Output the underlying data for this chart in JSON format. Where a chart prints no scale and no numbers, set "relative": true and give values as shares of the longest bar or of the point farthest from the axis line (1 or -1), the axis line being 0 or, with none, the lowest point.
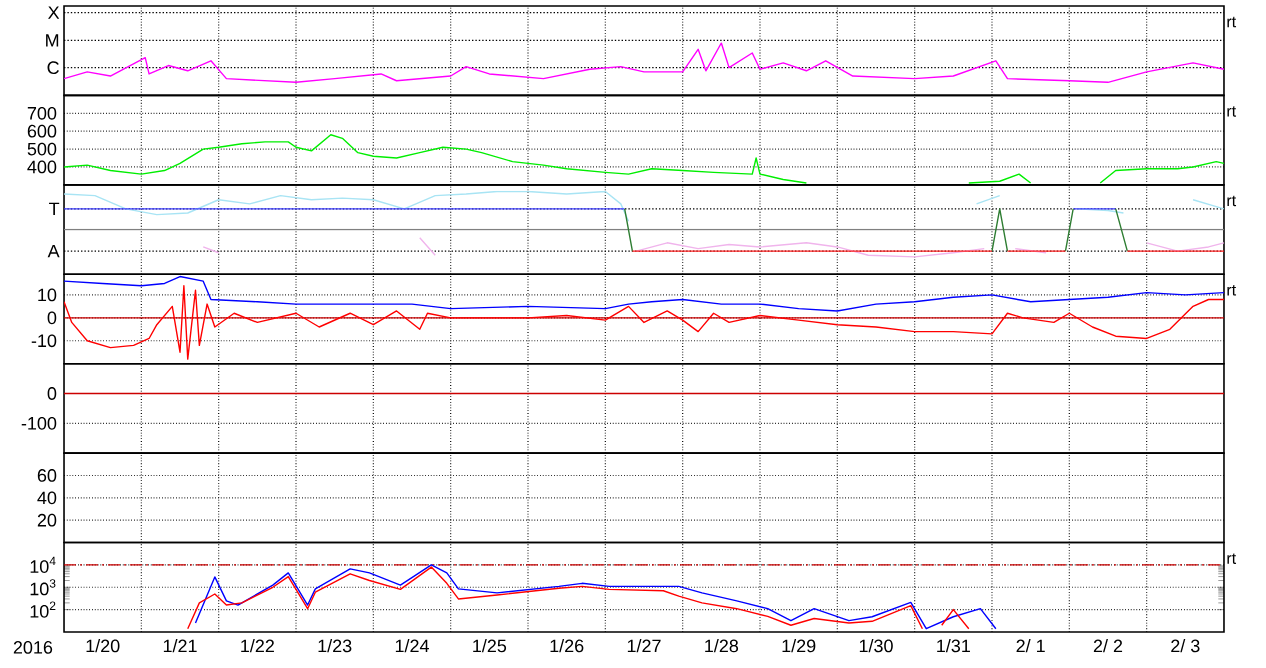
{
  "chart_data": [
    {
      "type": "line",
      "relative": true,
      "grid": "x",
      "tick_labels": "y",
      "xlim": [
        "2016-01-20T00:00",
        "2016-02-04T00:00"
      ],
      "xticks": [
        {
          "value": "2016-01-21",
          "label": null
        },
        {
          "value": "2016-01-22",
          "label": null
        },
        {
          "value": "2016-01-23",
          "label": null
        },
        {
          "value": "2016-01-24",
          "label": null
        },
        {
          "value": "2016-01-25",
          "label": null
        },
        {
          "value": "2016-01-26",
          "label": null
        },
        {
          "value": "2016-01-27",
          "label": null
        },
        {
          "value": "2016-01-28",
          "label": null
        },
        {
          "value": "2016-01-29",
          "label": null
        },
        {
          "value": "2016-01-30",
          "label": null
        },
        {
          "value": "2016-01-31",
          "label": null
        },
        {
          "value": "2016-02-01",
          "label": null
        },
        {
          "value": "2016-02-02",
          "label": null
        },
        {
          "value": "2016-02-03",
          "label": null
        }
      ],
      "annotations": [
        "rt"
      ],
      "ref_lines": [
        {
          "axis": "y",
          "value": 1.58,
          "label": "X",
          "color": "#000000",
          "line_style": "dotted"
        },
        {
          "axis": "y",
          "value": 1.05,
          "label": "M",
          "color": "#000000",
          "line_style": "dotted"
        },
        {
          "axis": "y",
          "value": 0.53,
          "label": "C",
          "color": "#000000",
          "line_style": "dotted"
        }
      ],
      "series": [
        {
          "color": "#ff00ff",
          "x": [
            "2016-01-20T00:00",
            "2016-01-20T07:12",
            "2016-01-20T14:24",
            "2016-01-21T01:12",
            "2016-01-21T02:24",
            "2016-01-21T08:24",
            "2016-01-21T14:24",
            "2016-01-21T21:36",
            "2016-01-22T02:24",
            "2016-01-23T00:00",
            "2016-01-23T12:00",
            "2016-01-24T02:24",
            "2016-01-24T07:12",
            "2016-01-25T00:00",
            "2016-01-25T04:48",
            "2016-01-25T12:00",
            "2016-01-26T04:48",
            "2016-01-26T19:12",
            "2016-01-27T04:48",
            "2016-01-27T12:00",
            "2016-01-28T00:00",
            "2016-01-28T04:48",
            "2016-01-28T07:12",
            "2016-01-28T12:00",
            "2016-01-28T14:24",
            "2016-01-28T21:36",
            "2016-01-29T00:00",
            "2016-01-29T07:12",
            "2016-01-29T14:24",
            "2016-01-29T20:24",
            "2016-01-30T04:48",
            "2016-01-31T00:00",
            "2016-01-31T12:00",
            "2016-02-01T01:12",
            "2016-02-01T04:48",
            "2016-02-02T00:00",
            "2016-02-02T12:00",
            "2016-02-03T00:00",
            "2016-02-03T14:24",
            "2016-02-04T00:00"
          ],
          "values": [
            0.32,
            0.45,
            0.37,
            0.72,
            0.41,
            0.57,
            0.47,
            0.66,
            0.32,
            0.25,
            0.32,
            0.41,
            0.28,
            0.37,
            0.55,
            0.41,
            0.32,
            0.5,
            0.55,
            0.45,
            0.45,
            0.88,
            0.47,
            1,
            0.53,
            0.81,
            0.5,
            0.62,
            0.47,
            0.66,
            0.37,
            0.32,
            0.37,
            0.66,
            0.32,
            0.28,
            0.25,
            0.45,
            0.62,
            0.5
          ]
        }
      ]
    },
    {
      "type": "line",
      "grid": true,
      "tick_labels": "y",
      "xlim": [
        "2016-01-20T00:00",
        "2016-02-04T00:00"
      ],
      "ylim": [
        300,
        800
      ],
      "xticks": [
        {
          "value": "2016-01-21",
          "label": null
        },
        {
          "value": "2016-01-22",
          "label": null
        },
        {
          "value": "2016-01-23",
          "label": null
        },
        {
          "value": "2016-01-24",
          "label": null
        },
        {
          "value": "2016-01-25",
          "label": null
        },
        {
          "value": "2016-01-26",
          "label": null
        },
        {
          "value": "2016-01-27",
          "label": null
        },
        {
          "value": "2016-01-28",
          "label": null
        },
        {
          "value": "2016-01-29",
          "label": null
        },
        {
          "value": "2016-01-30",
          "label": null
        },
        {
          "value": "2016-01-31",
          "label": null
        },
        {
          "value": "2016-02-01",
          "label": null
        },
        {
          "value": "2016-02-02",
          "label": null
        },
        {
          "value": "2016-02-03",
          "label": null
        }
      ],
      "yticks": [
        400,
        500,
        600,
        700
      ],
      "annotations": [
        "rt"
      ],
      "series": [
        {
          "color": "#00ee00",
          "x": [
            "2016-01-20T00:00",
            "2016-01-20T07:12",
            "2016-01-20T14:24",
            "2016-01-21T00:00",
            "2016-01-21T07:12",
            "2016-01-21T12:00",
            "2016-01-21T19:12",
            "2016-01-22T00:00",
            "2016-01-22T07:12",
            "2016-01-22T14:24",
            "2016-01-22T21:36",
            "2016-01-23T00:00",
            "2016-01-23T04:48",
            "2016-01-23T10:48",
            "2016-01-23T14:24",
            "2016-01-23T19:12",
            "2016-01-24T00:00",
            "2016-01-24T07:12",
            "2016-01-24T14:24",
            "2016-01-24T21:36",
            "2016-01-25T04:48",
            "2016-01-25T09:36",
            "2016-01-25T19:12",
            "2016-01-26T04:48",
            "2016-01-26T12:00",
            "2016-01-27T00:00",
            "2016-01-27T07:12",
            "2016-01-27T14:24",
            "2016-01-28T00:00",
            "2016-01-28T09:36",
            "2016-01-28T21:36",
            "2016-01-28T22:48",
            "2016-01-29T00:00",
            "2016-01-29T07:12",
            "2016-01-29T14:24",
            "2016-01-29T16:48",
            "2016-01-31T16:48",
            "2016-02-01T02:24",
            "2016-02-01T08:24",
            "2016-02-01T12:00",
            "2016-02-01T14:24",
            "2016-02-02T09:36",
            "2016-02-02T14:24",
            "2016-02-03T00:00",
            "2016-02-03T09:36",
            "2016-02-03T14:24",
            "2016-02-03T21:36",
            "2016-02-04T00:00"
          ],
          "values": [
            400,
            410,
            380,
            360,
            380,
            420,
            500,
            510,
            530,
            540,
            540,
            510,
            490,
            580,
            560,
            480,
            460,
            450,
            480,
            510,
            500,
            480,
            430,
            410,
            390,
            370,
            360,
            390,
            380,
            370,
            360,
            450,
            360,
            330,
            310,
            null,
            310,
            320,
            360,
            310,
            null,
            310,
            380,
            390,
            390,
            400,
            430,
            420
          ]
        }
      ]
    },
    {
      "type": "line",
      "relative": true,
      "grid": "x",
      "tick_labels": "y",
      "xlim": [
        "2016-01-20T00:00",
        "2016-02-04T00:00"
      ],
      "xticks": [
        {
          "value": "2016-01-21",
          "label": null
        },
        {
          "value": "2016-01-22",
          "label": null
        },
        {
          "value": "2016-01-23",
          "label": null
        },
        {
          "value": "2016-01-24",
          "label": null
        },
        {
          "value": "2016-01-25",
          "label": null
        },
        {
          "value": "2016-01-26",
          "label": null
        },
        {
          "value": "2016-01-27",
          "label": null
        },
        {
          "value": "2016-01-28",
          "label": null
        },
        {
          "value": "2016-01-29",
          "label": null
        },
        {
          "value": "2016-01-30",
          "label": null
        },
        {
          "value": "2016-01-31",
          "label": null
        },
        {
          "value": "2016-02-01",
          "label": null
        },
        {
          "value": "2016-02-02",
          "label": null
        },
        {
          "value": "2016-02-03",
          "label": null
        }
      ],
      "annotations": [
        "rt"
      ],
      "ref_lines": [
        {
          "axis": "y",
          "value": 0.79,
          "label": "T",
          "color": "#000000",
          "line_style": "dotted"
        },
        {
          "axis": "y",
          "value": 0.54,
          "color": "#808080"
        },
        {
          "axis": "y",
          "value": 0.28,
          "label": "A",
          "color": "#000000",
          "line_style": "dotted"
        }
      ],
      "series": [
        {
          "color": "#a8e4f4",
          "x": [
            "2016-01-20T00:00",
            "2016-01-20T09:36",
            "2016-01-20T19:12",
            "2016-01-21T04:48",
            "2016-01-21T14:24",
            "2016-01-22T00:00",
            "2016-01-22T09:36",
            "2016-01-22T19:12",
            "2016-01-23T04:48",
            "2016-01-23T14:24",
            "2016-01-24T00:00",
            "2016-01-24T09:36",
            "2016-01-24T19:12",
            "2016-01-25T04:48",
            "2016-01-25T14:24",
            "2016-01-26T00:00",
            "2016-01-26T12:00",
            "2016-01-27T00:00",
            "2016-01-27T04:48",
            "2016-01-27T07:12",
            "2016-01-27T09:36",
            "2016-01-31T19:12",
            "2016-02-01T02:24",
            "2016-02-01T07:12",
            "2016-02-02T02:24",
            "2016-02-02T12:00",
            "2016-02-02T16:48",
            "2016-02-02T19:12",
            "2016-02-03T14:24",
            "2016-02-04T00:00"
          ],
          "values": [
            0.97,
            0.95,
            0.79,
            0.72,
            0.74,
            0.9,
            0.85,
            0.95,
            0.9,
            0.92,
            0.9,
            0.79,
            0.95,
            0.97,
            1,
            1,
            0.97,
            1,
            0.85,
            0.64,
            null,
            0.85,
            0.95,
            null,
            0.79,
            0.77,
            0.74,
            null,
            0.9,
            0.79
          ]
        },
        {
          "color": "#f0b4ec",
          "x": [
            "2016-01-21T19:12",
            "2016-01-22T00:00",
            "2016-01-22T02:24",
            "2016-01-24T14:24",
            "2016-01-24T19:12",
            "2016-01-24T21:36",
            "2016-01-27T09:36",
            "2016-01-27T19:12",
            "2016-01-28T04:48",
            "2016-01-28T14:24",
            "2016-01-29T00:00",
            "2016-01-29T14:24",
            "2016-01-30T00:00",
            "2016-01-30T09:36",
            "2016-01-31T00:00",
            "2016-01-31T12:00",
            "2016-01-31T21:36",
            "2016-02-01T00:00",
            "2016-02-01T07:12",
            "2016-02-01T16:48",
            "2016-02-01T19:12",
            "2016-02-03T00:00",
            "2016-02-03T09:36",
            "2016-02-03T19:12",
            "2016-02-04T00:00"
          ],
          "values": [
            0.33,
            0.26,
            null,
            0.44,
            0.23,
            null,
            0.28,
            0.38,
            0.31,
            0.36,
            0.33,
            0.38,
            0.33,
            0.23,
            0.21,
            0.26,
            0.31,
            null,
            0.31,
            0.26,
            null,
            0.38,
            0.28,
            0.33,
            0.38
          ]
        },
        {
          "color": "#4040ff",
          "x": [
            "2016-01-20T00:00",
            "2016-01-27T06:00",
            "2016-01-30T00:00",
            "2016-02-02T01:12",
            "2016-02-02T14:24"
          ],
          "values": [
            0.79,
            0.79,
            null,
            0.79,
            0.79
          ]
        },
        {
          "color": "#2e7d32",
          "x": [
            "2016-01-27T06:00",
            "2016-01-27T08:24",
            "2016-01-27T09:36",
            "2016-02-01T00:00",
            "2016-02-01T02:24",
            "2016-02-01T04:48",
            "2016-02-01T12:00",
            "2016-02-01T22:48",
            "2016-02-02T01:12",
            "2016-02-02T07:12",
            "2016-02-02T14:24",
            "2016-02-02T18:00"
          ],
          "values": [
            0.79,
            0.28,
            null,
            0.28,
            0.79,
            0.28,
            null,
            0.28,
            0.79,
            null,
            0.79,
            0.28
          ]
        },
        {
          "color": "#ff2020",
          "x": [
            "2016-01-27T08:24",
            "2016-02-01T00:00",
            "2016-02-01T02:24",
            "2016-02-01T04:48",
            "2016-02-01T22:48",
            "2016-02-02T07:12",
            "2016-02-02T18:00",
            "2016-02-04T00:00"
          ],
          "values": [
            0.28,
            0.28,
            null,
            0.28,
            0.28,
            null,
            0.28,
            0.28
          ]
        }
      ]
    },
    {
      "type": "line",
      "grid": true,
      "tick_labels": "y",
      "xlim": [
        "2016-01-20T00:00",
        "2016-02-04T00:00"
      ],
      "ylim": [
        -20,
        19
      ],
      "xticks": [
        {
          "value": "2016-01-21",
          "label": null
        },
        {
          "value": "2016-01-22",
          "label": null
        },
        {
          "value": "2016-01-23",
          "label": null
        },
        {
          "value": "2016-01-24",
          "label": null
        },
        {
          "value": "2016-01-25",
          "label": null
        },
        {
          "value": "2016-01-26",
          "label": null
        },
        {
          "value": "2016-01-27",
          "label": null
        },
        {
          "value": "2016-01-28",
          "label": null
        },
        {
          "value": "2016-01-29",
          "label": null
        },
        {
          "value": "2016-01-30",
          "label": null
        },
        {
          "value": "2016-01-31",
          "label": null
        },
        {
          "value": "2016-02-01",
          "label": null
        },
        {
          "value": "2016-02-02",
          "label": null
        },
        {
          "value": "2016-02-03",
          "label": null
        }
      ],
      "yticks": [
        -10,
        0,
        10
      ],
      "annotations": [
        "rt"
      ],
      "ref_lines": [
        {
          "axis": "y",
          "value": 0,
          "color": "#cc0000"
        }
      ],
      "series": [
        {
          "color": "#0000ff",
          "x": [
            "2016-01-20T00:00",
            "2016-01-20T12:00",
            "2016-01-21T00:00",
            "2016-01-21T07:12",
            "2016-01-21T12:00",
            "2016-01-21T19:12",
            "2016-01-21T21:36",
            "2016-01-22T12:00",
            "2016-01-23T00:00",
            "2016-01-24T00:00",
            "2016-01-24T12:00",
            "2016-01-25T00:00",
            "2016-01-26T00:00",
            "2016-01-27T00:00",
            "2016-01-27T07:12",
            "2016-01-27T14:24",
            "2016-01-28T00:00",
            "2016-01-28T12:00",
            "2016-01-29T00:00",
            "2016-01-29T12:00",
            "2016-01-30T00:00",
            "2016-01-30T12:00",
            "2016-01-31T00:00",
            "2016-01-31T12:00",
            "2016-02-01T00:00",
            "2016-02-01T12:00",
            "2016-02-02T00:00",
            "2016-02-02T12:00",
            "2016-02-03T00:00",
            "2016-02-03T12:00",
            "2016-02-04T00:00"
          ],
          "values": [
            16,
            15,
            14,
            15,
            18,
            16,
            8,
            7,
            6,
            6,
            6,
            4,
            5,
            4,
            6,
            7,
            8,
            6,
            6,
            4,
            3,
            6,
            7,
            9,
            10,
            7,
            8,
            9,
            11,
            10,
            11
          ]
        },
        {
          "color": "#ff0000",
          "x": [
            "2016-01-20T00:00",
            "2016-01-20T02:24",
            "2016-01-20T07:12",
            "2016-01-20T14:24",
            "2016-01-20T21:36",
            "2016-01-21T02:24",
            "2016-01-21T04:48",
            "2016-01-21T09:36",
            "2016-01-21T12:00",
            "2016-01-21T13:12",
            "2016-01-21T14:24",
            "2016-01-21T16:48",
            "2016-01-21T18:00",
            "2016-01-21T20:24",
            "2016-01-21T22:48",
            "2016-01-22T04:48",
            "2016-01-22T12:00",
            "2016-01-23T00:00",
            "2016-01-23T07:12",
            "2016-01-23T16:48",
            "2016-01-24T00:00",
            "2016-01-24T07:12",
            "2016-01-24T14:24",
            "2016-01-24T16:48",
            "2016-01-25T00:00",
            "2016-01-26T00:00",
            "2016-01-26T12:00",
            "2016-01-27T00:00",
            "2016-01-27T07:12",
            "2016-01-27T12:00",
            "2016-01-27T19:12",
            "2016-01-28T00:00",
            "2016-01-28T04:48",
            "2016-01-28T09:36",
            "2016-01-28T14:24",
            "2016-01-29T00:00",
            "2016-01-29T12:00",
            "2016-01-30T00:00",
            "2016-01-30T12:00",
            "2016-01-31T00:00",
            "2016-01-31T12:00",
            "2016-02-01T00:00",
            "2016-02-01T04:48",
            "2016-02-01T09:36",
            "2016-02-01T19:12",
            "2016-02-02T00:00",
            "2016-02-02T07:12",
            "2016-02-02T14:24",
            "2016-02-03T00:00",
            "2016-02-03T07:12",
            "2016-02-03T14:24",
            "2016-02-03T19:12",
            "2016-02-04T00:00"
          ],
          "values": [
            7,
            -2,
            -10,
            -13,
            -12,
            -9,
            -3,
            5,
            -15,
            14,
            -18,
            12,
            -12,
            6,
            -4,
            2,
            -2,
            2,
            -4,
            2,
            -3,
            3,
            -5,
            2,
            0,
            0,
            1,
            -1,
            5,
            -2,
            3,
            -1,
            -6,
            2,
            -2,
            1,
            -1,
            -3,
            -4,
            -6,
            -6,
            -7,
            2,
            0,
            -2,
            2,
            -4,
            -8,
            -9,
            -5,
            5,
            8,
            8
          ]
        }
      ]
    },
    {
      "type": "line",
      "grid": true,
      "tick_labels": "y",
      "xlim": [
        "2016-01-20T00:00",
        "2016-02-04T00:00"
      ],
      "ylim": [
        -200,
        100
      ],
      "xticks": [
        {
          "value": "2016-01-21",
          "label": null
        },
        {
          "value": "2016-01-22",
          "label": null
        },
        {
          "value": "2016-01-23",
          "label": null
        },
        {
          "value": "2016-01-24",
          "label": null
        },
        {
          "value": "2016-01-25",
          "label": null
        },
        {
          "value": "2016-01-26",
          "label": null
        },
        {
          "value": "2016-01-27",
          "label": null
        },
        {
          "value": "2016-01-28",
          "label": null
        },
        {
          "value": "2016-01-29",
          "label": null
        },
        {
          "value": "2016-01-30",
          "label": null
        },
        {
          "value": "2016-01-31",
          "label": null
        },
        {
          "value": "2016-02-01",
          "label": null
        },
        {
          "value": "2016-02-02",
          "label": null
        },
        {
          "value": "2016-02-03",
          "label": null
        }
      ],
      "yticks": [
        -100,
        0
      ],
      "ref_lines": [
        {
          "axis": "y",
          "value": 0,
          "color": "#cc0000"
        }
      ]
    },
    {
      "type": "line",
      "grid": true,
      "tick_labels": "y",
      "xlim": [
        "2016-01-20T00:00",
        "2016-02-04T00:00"
      ],
      "ylim": [
        0,
        80
      ],
      "xticks": [
        {
          "value": "2016-01-21",
          "label": null
        },
        {
          "value": "2016-01-22",
          "label": null
        },
        {
          "value": "2016-01-23",
          "label": null
        },
        {
          "value": "2016-01-24",
          "label": null
        },
        {
          "value": "2016-01-25",
          "label": null
        },
        {
          "value": "2016-01-26",
          "label": null
        },
        {
          "value": "2016-01-27",
          "label": null
        },
        {
          "value": "2016-01-28",
          "label": null
        },
        {
          "value": "2016-01-29",
          "label": null
        },
        {
          "value": "2016-01-30",
          "label": null
        },
        {
          "value": "2016-01-31",
          "label": null
        },
        {
          "value": "2016-02-01",
          "label": null
        },
        {
          "value": "2016-02-02",
          "label": null
        },
        {
          "value": "2016-02-03",
          "label": null
        }
      ],
      "yticks": [
        20,
        40,
        60
      ]
    },
    {
      "type": "line",
      "log": true,
      "grid": true,
      "xlim": [
        "2016-01-20T00:00",
        "2016-02-04T00:00"
      ],
      "ylim": [
        10,
        100000
      ],
      "xlabel": "2016",
      "xticks": [
        {
          "value": "2016-01-20T12:00",
          "label": "1/20"
        },
        {
          "value": "2016-01-21",
          "label": null
        },
        {
          "value": "2016-01-21T12:00",
          "label": "1/21"
        },
        {
          "value": "2016-01-22",
          "label": null
        },
        {
          "value": "2016-01-22T12:00",
          "label": "1/22"
        },
        {
          "value": "2016-01-23",
          "label": null
        },
        {
          "value": "2016-01-23T12:00",
          "label": "1/23"
        },
        {
          "value": "2016-01-24",
          "label": null
        },
        {
          "value": "2016-01-24T12:00",
          "label": "1/24"
        },
        {
          "value": "2016-01-25",
          "label": null
        },
        {
          "value": "2016-01-25T12:00",
          "label": "1/25"
        },
        {
          "value": "2016-01-26",
          "label": null
        },
        {
          "value": "2016-01-26T12:00",
          "label": "1/26"
        },
        {
          "value": "2016-01-27",
          "label": null
        },
        {
          "value": "2016-01-27T12:00",
          "label": "1/27"
        },
        {
          "value": "2016-01-28",
          "label": null
        },
        {
          "value": "2016-01-28T12:00",
          "label": "1/28"
        },
        {
          "value": "2016-01-29",
          "label": null
        },
        {
          "value": "2016-01-29T12:00",
          "label": "1/29"
        },
        {
          "value": "2016-01-30",
          "label": null
        },
        {
          "value": "2016-01-30T12:00",
          "label": "1/30"
        },
        {
          "value": "2016-01-31",
          "label": null
        },
        {
          "value": "2016-01-31T12:00",
          "label": "1/31"
        },
        {
          "value": "2016-02-01",
          "label": null
        },
        {
          "value": "2016-02-01T12:00",
          "label": "2/ 1"
        },
        {
          "value": "2016-02-02",
          "label": null
        },
        {
          "value": "2016-02-02T12:00",
          "label": "2/ 2"
        },
        {
          "value": "2016-02-03",
          "label": null
        },
        {
          "value": "2016-02-03T12:00",
          "label": "2/ 3"
        }
      ],
      "yticks": [
        {
          "value": 100,
          "label": "10$^{2}$"
        },
        {
          "value": 1000,
          "label": "10$^{3}$"
        },
        {
          "value": 10000,
          "label": "10$^{4}$"
        }
      ],
      "annotations": [
        "rt"
      ],
      "ref_lines": [
        {
          "axis": "y",
          "value": 10000,
          "color": "#cc0000",
          "line_style": "dashed"
        }
      ],
      "series": [
        {
          "color": "#0000ff",
          "x": [
            "2016-01-21T16:48",
            "2016-01-21T22:48",
            "2016-01-22T02:24",
            "2016-01-22T06:00",
            "2016-01-22T16:48",
            "2016-01-22T21:36",
            "2016-01-23T03:36",
            "2016-01-23T06:00",
            "2016-01-23T16:48",
            "2016-01-23T22:48",
            "2016-01-24T08:24",
            "2016-01-24T18:00",
            "2016-01-24T22:48",
            "2016-01-25T02:24",
            "2016-01-25T14:24",
            "2016-01-26T09:36",
            "2016-01-26T16:48",
            "2016-01-27T01:12",
            "2016-01-27T18:00",
            "2016-01-27T22:48",
            "2016-01-28T06:00",
            "2016-01-28T16:48",
            "2016-01-29T02:24",
            "2016-01-29T09:36",
            "2016-01-29T16:48",
            "2016-01-30T03:36",
            "2016-01-30T10:48",
            "2016-01-30T22:48",
            "2016-01-31T03:36",
            "2016-01-31T12:00",
            "2016-01-31T20:24",
            "2016-02-01T01:12"
          ],
          "values": [
            25,
            2900,
            245,
            160,
            1250,
            4400,
            160,
            850,
            6600,
            4400,
            1250,
            10000,
            4400,
            850,
            560,
            1100,
            1500,
            1100,
            1100,
            1100,
            560,
            245,
            110,
            32,
            110,
            32,
            48,
            210,
            14,
            48,
            110,
            14
          ]
        },
        {
          "color": "#ff0000",
          "x": [
            "2016-01-21T14:24",
            "2016-01-21T18:00",
            "2016-01-21T22:48",
            "2016-01-22T02:24",
            "2016-01-22T07:12",
            "2016-01-22T16:48",
            "2016-01-22T21:36",
            "2016-01-23T03:36",
            "2016-01-23T06:00",
            "2016-01-23T16:48",
            "2016-01-23T22:48",
            "2016-01-24T08:24",
            "2016-01-24T18:00",
            "2016-01-24T22:48",
            "2016-01-25T02:24",
            "2016-01-25T14:24",
            "2016-01-26T09:36",
            "2016-01-26T16:48",
            "2016-01-27T01:12",
            "2016-01-27T18:00",
            "2016-01-27T22:48",
            "2016-01-28T06:00",
            "2016-01-28T16:48",
            "2016-01-29T02:24",
            "2016-01-29T09:36",
            "2016-01-29T16:48",
            "2016-01-30T03:36",
            "2016-01-30T10:48",
            "2016-01-30T22:48",
            "2016-01-31T02:24",
            "2016-01-31T03:36",
            "2016-01-31T08:24",
            "2016-01-31T12:00",
            "2016-01-31T16:48"
          ],
          "values": [
            14,
            200,
            500,
            160,
            200,
            1000,
            3000,
            110,
            600,
            4000,
            2000,
            800,
            8000,
            1500,
            300,
            450,
            900,
            1100,
            800,
            700,
            400,
            200,
            110,
            50,
            20,
            40,
            25,
            30,
            150,
            14,
            null,
            20,
            100,
            14
          ]
        }
      ]
    }
  ]
}
